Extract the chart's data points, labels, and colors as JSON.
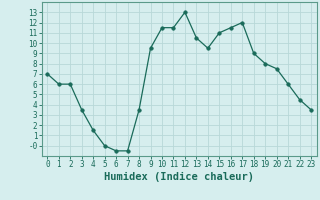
{
  "x": [
    0,
    1,
    2,
    3,
    4,
    5,
    6,
    7,
    8,
    9,
    10,
    11,
    12,
    13,
    14,
    15,
    16,
    17,
    18,
    19,
    20,
    21,
    22,
    23
  ],
  "y": [
    7.0,
    6.0,
    6.0,
    3.5,
    1.5,
    0.0,
    -0.5,
    -0.5,
    3.5,
    9.5,
    11.5,
    11.5,
    13.0,
    10.5,
    9.5,
    11.0,
    11.5,
    12.0,
    9.0,
    8.0,
    7.5,
    6.0,
    4.5,
    3.5
  ],
  "xlabel": "Humidex (Indice chaleur)",
  "line_color": "#1a6b5a",
  "marker": "o",
  "marker_size": 2.5,
  "bg_color": "#d6eeee",
  "grid_color": "#b8d8d8",
  "xlim": [
    -0.5,
    23.5
  ],
  "ylim": [
    -1,
    14
  ],
  "yticks": [
    0,
    1,
    2,
    3,
    4,
    5,
    6,
    7,
    8,
    9,
    10,
    11,
    12,
    13
  ],
  "ytick_labels": [
    "-0",
    "1",
    "2",
    "3",
    "4",
    "5",
    "6",
    "7",
    "8",
    "9",
    "10",
    "11",
    "12",
    "13"
  ],
  "xticks": [
    0,
    1,
    2,
    3,
    4,
    5,
    6,
    7,
    8,
    9,
    10,
    11,
    12,
    13,
    14,
    15,
    16,
    17,
    18,
    19,
    20,
    21,
    22,
    23
  ],
  "tick_fontsize": 5.5,
  "xlabel_fontsize": 7.5
}
